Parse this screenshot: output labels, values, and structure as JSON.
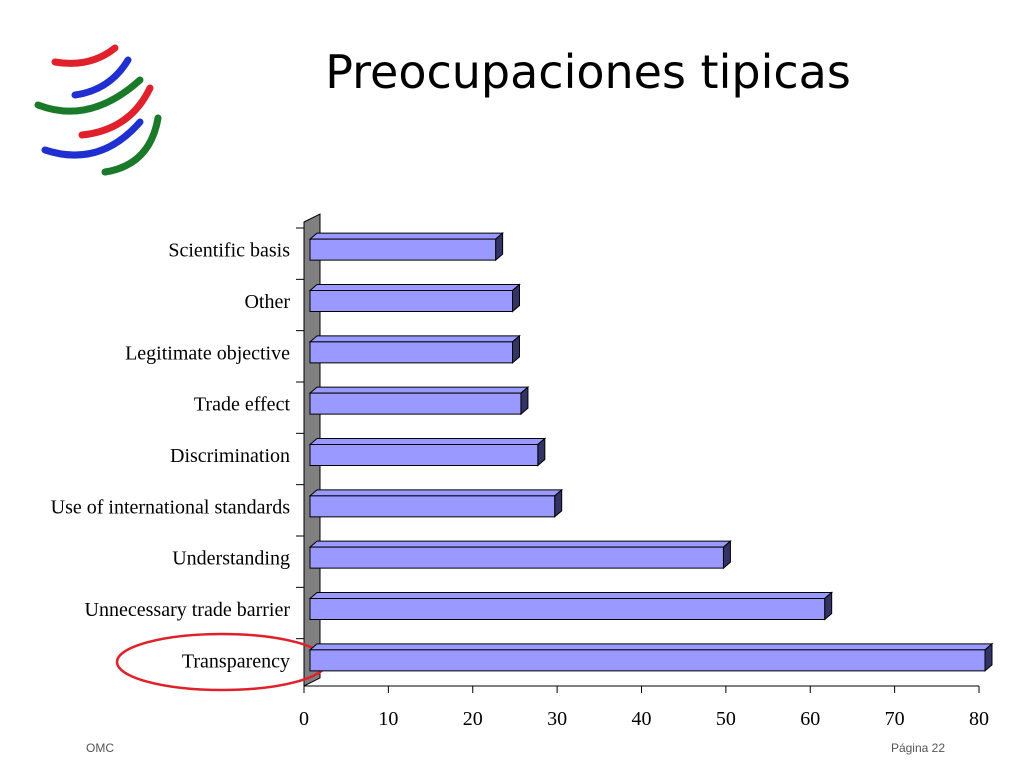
{
  "chart_data": {
    "type": "bar",
    "orientation": "horizontal",
    "title": "Preocupaciones tipicas",
    "categories": [
      "Scientific basis",
      "Other",
      "Legitimate objective",
      "Trade effect",
      "Discrimination",
      "Use of international standards",
      "Understanding",
      "Unnecessary trade barrier",
      "Transparency"
    ],
    "values": [
      22,
      24,
      24,
      25,
      27,
      29,
      49,
      61,
      80
    ],
    "color": "#9999ff",
    "xlim": [
      0,
      80
    ],
    "xticks": [
      0,
      10,
      20,
      30,
      40,
      50,
      60,
      70,
      80
    ]
  },
  "footer": {
    "left": "OMC",
    "right": "Página 22"
  }
}
